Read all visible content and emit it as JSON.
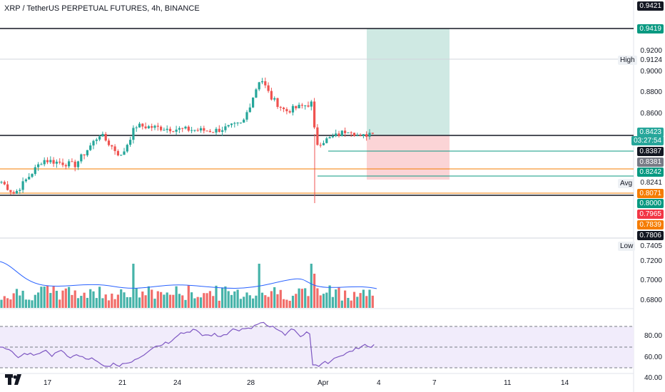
{
  "header": {
    "title": "XRP / TetherUS PERPETUAL FUTURES, 4h, BINANCE"
  },
  "price_axis": {
    "currency": "USDT",
    "ticks": [
      "0.9200",
      "0.9000",
      "0.8800",
      "0.8600",
      "0.8241",
      "0.7405",
      "0.7200",
      "0.7000",
      "0.6800"
    ],
    "tags": {
      "high_label": "High",
      "high_value": "0.9124",
      "avg_label": "Avg",
      "avg_value": "0.8241",
      "low_label": "Low",
      "low_value": "0.7405"
    }
  },
  "price_pills": [
    {
      "value": "0.9421",
      "color": "#131722"
    },
    {
      "value": "0.9419",
      "color": "#089981"
    },
    {
      "value": "0.8423",
      "color": "#26a69a"
    },
    {
      "value": "03:27:54",
      "color": "#26a69a"
    },
    {
      "value": "0.8387",
      "color": "#131722"
    },
    {
      "value": "0.8381",
      "color": "#787b86"
    },
    {
      "value": "0.8242",
      "color": "#089981"
    },
    {
      "value": "0.8071",
      "color": "#f57c00"
    },
    {
      "value": "0.8000",
      "color": "#089981"
    },
    {
      "value": "0.7965",
      "color": "#f23645"
    },
    {
      "value": "0.7839",
      "color": "#f57c00"
    },
    {
      "value": "0.7806",
      "color": "#131722"
    }
  ],
  "rsi_axis": {
    "ticks": [
      "80.00",
      "60.00",
      "40.00"
    ]
  },
  "time_axis": {
    "labels": [
      "17",
      "21",
      "24",
      "28",
      "Apr",
      "4",
      "7",
      "11",
      "14"
    ]
  },
  "colors": {
    "up": "#26a69a",
    "down": "#ef5350",
    "vol_up": "#26a69a",
    "vol_down": "#ef5350",
    "rsi": "#7e57c2",
    "rsi_band": "#f1ecfb",
    "orange": "#f57c00",
    "black": "#131722",
    "green_line": "#089981",
    "profit": "#cfe9e3",
    "loss": "#fbd4d6"
  },
  "icons": {
    "logo": "tradingview-logo-icon"
  }
}
